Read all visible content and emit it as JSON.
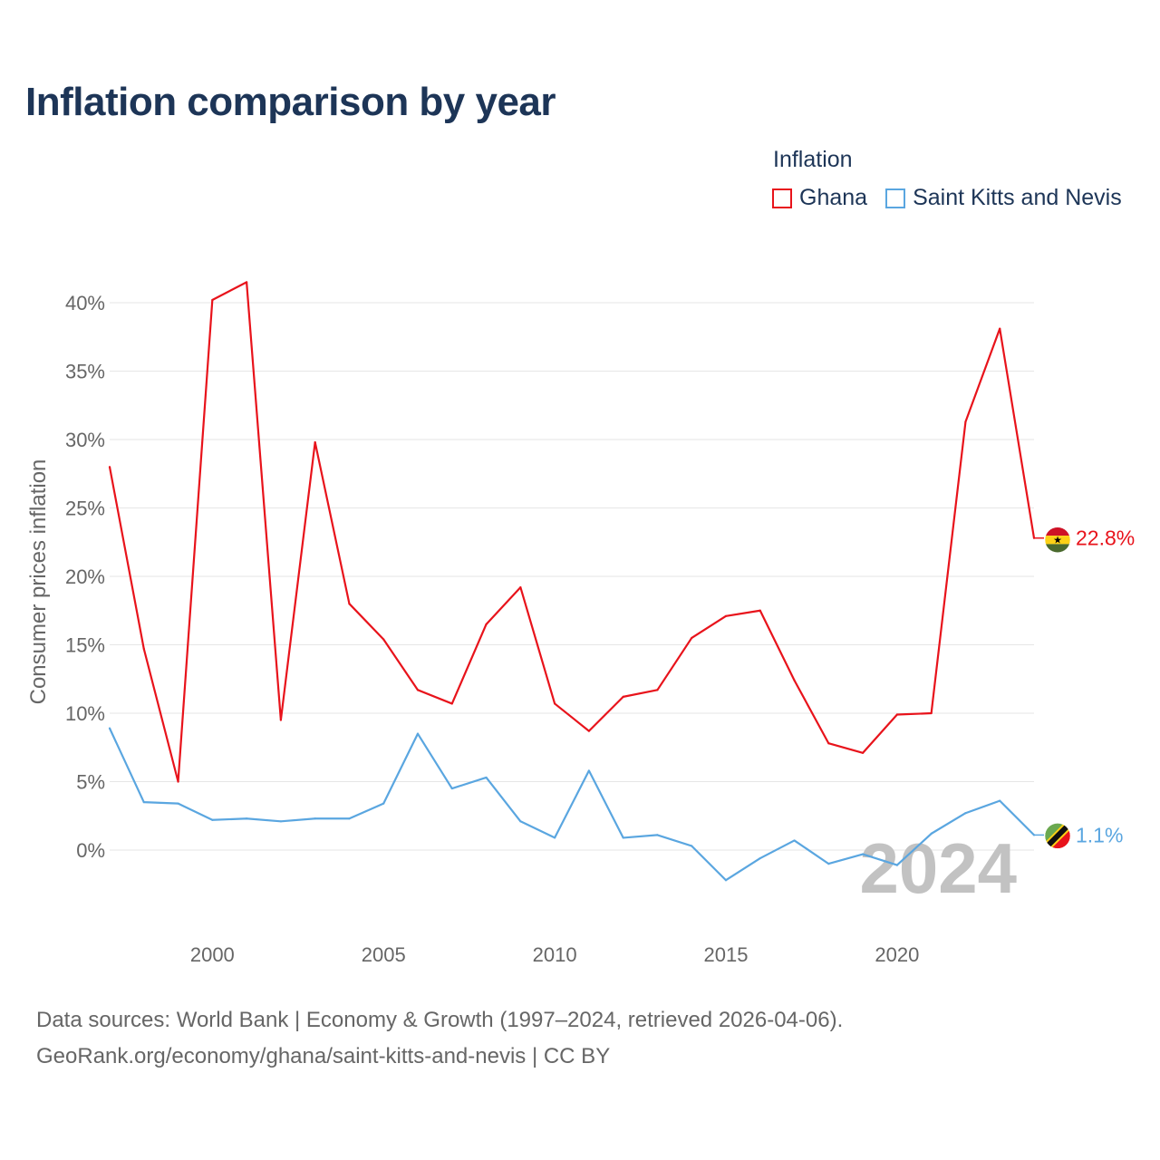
{
  "title": "Inflation comparison by year",
  "legend": {
    "title": "Inflation",
    "items": [
      {
        "label": "Ghana",
        "color": "#e8131b"
      },
      {
        "label": "Saint Kitts and Nevis",
        "color": "#5aa6e0"
      }
    ]
  },
  "footer": {
    "line1": "Data sources: World Bank | Economy & Growth (1997–2024, retrieved 2026-04-06).",
    "line2": "GeoRank.org/economy/ghana/saint-kitts-and-nevis | CC BY"
  },
  "chart_data": {
    "type": "line",
    "ylabel": "Consumer prices inflation",
    "xlabel": "",
    "watermark": "2024",
    "ylim": [
      -5,
      45
    ],
    "xlim": [
      1997,
      2024
    ],
    "yticks": [
      0,
      5,
      10,
      15,
      20,
      25,
      30,
      35,
      40
    ],
    "ytick_labels": [
      "0%",
      "5%",
      "10%",
      "15%",
      "20%",
      "25%",
      "30%",
      "35%",
      "40%"
    ],
    "xticks": [
      2000,
      2005,
      2010,
      2015,
      2020
    ],
    "xtick_labels": [
      "2000",
      "2005",
      "2010",
      "2015",
      "2020"
    ],
    "x": [
      1997,
      1998,
      1999,
      2000,
      2001,
      2002,
      2003,
      2004,
      2005,
      2006,
      2007,
      2008,
      2009,
      2010,
      2011,
      2012,
      2013,
      2014,
      2015,
      2016,
      2017,
      2018,
      2019,
      2020,
      2021,
      2022,
      2023,
      2024
    ],
    "series": [
      {
        "name": "Ghana",
        "color": "#e8131b",
        "end_label": "22.8%",
        "flag_icon": "ghana-flag-icon",
        "values": [
          28.0,
          14.7,
          5.0,
          40.2,
          41.5,
          9.5,
          29.8,
          18.0,
          15.4,
          11.7,
          10.7,
          16.5,
          19.2,
          10.7,
          8.7,
          11.2,
          11.7,
          15.5,
          17.1,
          17.5,
          12.4,
          7.8,
          7.1,
          9.9,
          10.0,
          31.3,
          38.1,
          22.8
        ]
      },
      {
        "name": "Saint Kitts and Nevis",
        "color": "#5aa6e0",
        "end_label": "1.1%",
        "flag_icon": "saint-kitts-and-nevis-flag-icon",
        "values": [
          8.9,
          3.5,
          3.4,
          2.2,
          2.3,
          2.1,
          2.3,
          2.3,
          3.4,
          8.5,
          4.5,
          5.3,
          2.1,
          0.9,
          5.8,
          0.9,
          1.1,
          0.3,
          -2.2,
          -0.6,
          0.7,
          -1.0,
          -0.3,
          -1.1,
          1.2,
          2.7,
          3.6,
          1.1
        ]
      }
    ]
  }
}
